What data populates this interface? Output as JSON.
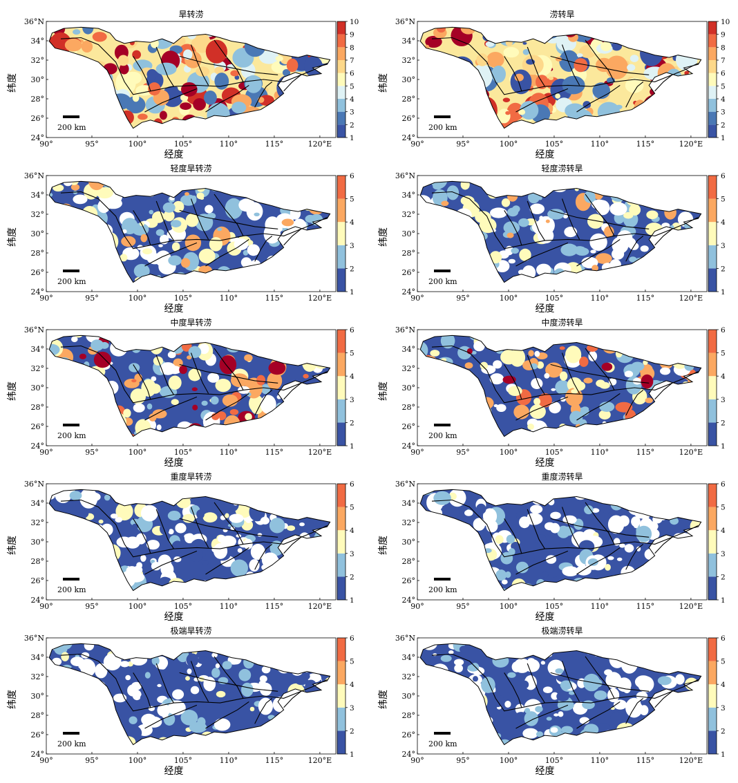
{
  "figure": {
    "xlabel": "经度",
    "ylabel": "纬度",
    "x_ticks": [
      "90°",
      "95°",
      "100°",
      "105°",
      "110°",
      "115°",
      "120°E"
    ],
    "y_ticks": [
      "36°N",
      "34°",
      "32°",
      "30°",
      "28°",
      "26°",
      "24°"
    ],
    "scale_bar": "200 km"
  },
  "colors": {
    "1": "#313695",
    "2": "#4575b4",
    "3": "#abd9e9",
    "4": "#e0f3f8",
    "5": "#fee090",
    "6": "#fdae61",
    "7": "#f46d43",
    "8": "#d73027",
    "9": "#a50026",
    "cb10": [
      "#3953a4",
      "#4a78b5",
      "#90c1dd",
      "#dff2f5",
      "#fffbbb",
      "#fdd88a",
      "#fba861",
      "#f16b43",
      "#d13027",
      "#a50026"
    ],
    "cb6": [
      "#3953a4",
      "#90c1dd",
      "#fffbbb",
      "#fba861",
      "#f16b43",
      "#a50026"
    ]
  },
  "panels": [
    {
      "title": "旱转涝",
      "colorbar": [
        "1",
        "2",
        "3",
        "4",
        "5",
        "6",
        "7",
        "8",
        "9",
        "10"
      ],
      "intensity": 0.55,
      "kind": "full"
    },
    {
      "title": "涝转旱",
      "colorbar": [
        "1",
        "2",
        "3",
        "4",
        "5",
        "6",
        "7",
        "8",
        "9",
        "10"
      ],
      "intensity": 0.6,
      "kind": "full"
    },
    {
      "title": "轻度旱转涝",
      "colorbar": [
        "1",
        "2",
        "3",
        "4",
        "5",
        "6"
      ],
      "intensity": 0.18,
      "kind": "mild"
    },
    {
      "title": "轻度涝转旱",
      "colorbar": [
        "1",
        "2",
        "3",
        "4",
        "5",
        "6"
      ],
      "intensity": 0.22,
      "kind": "mild"
    },
    {
      "title": "中度旱转涝",
      "colorbar": [
        "1",
        "2",
        "3",
        "4",
        "5",
        "6"
      ],
      "intensity": 0.35,
      "kind": "moderate"
    },
    {
      "title": "中度涝转旱",
      "colorbar": [
        "1",
        "2",
        "3",
        "4",
        "5",
        "6"
      ],
      "intensity": 0.4,
      "kind": "moderate"
    },
    {
      "title": "重度旱转涝",
      "colorbar": [
        "1",
        "2",
        "3",
        "4",
        "5",
        "6"
      ],
      "intensity": 0.12,
      "kind": "severe"
    },
    {
      "title": "重度涝转旱",
      "colorbar": [
        "1",
        "2",
        "3",
        "4",
        "5",
        "6"
      ],
      "intensity": 0.12,
      "kind": "severe"
    },
    {
      "title": "极端旱转涝",
      "colorbar": [
        "1",
        "2",
        "3",
        "4",
        "5",
        "6"
      ],
      "intensity": 0.05,
      "kind": "extreme"
    },
    {
      "title": "极端涝转旱",
      "colorbar": [
        "1",
        "2",
        "3",
        "4",
        "5",
        "6"
      ],
      "intensity": 0.05,
      "kind": "extreme"
    }
  ]
}
